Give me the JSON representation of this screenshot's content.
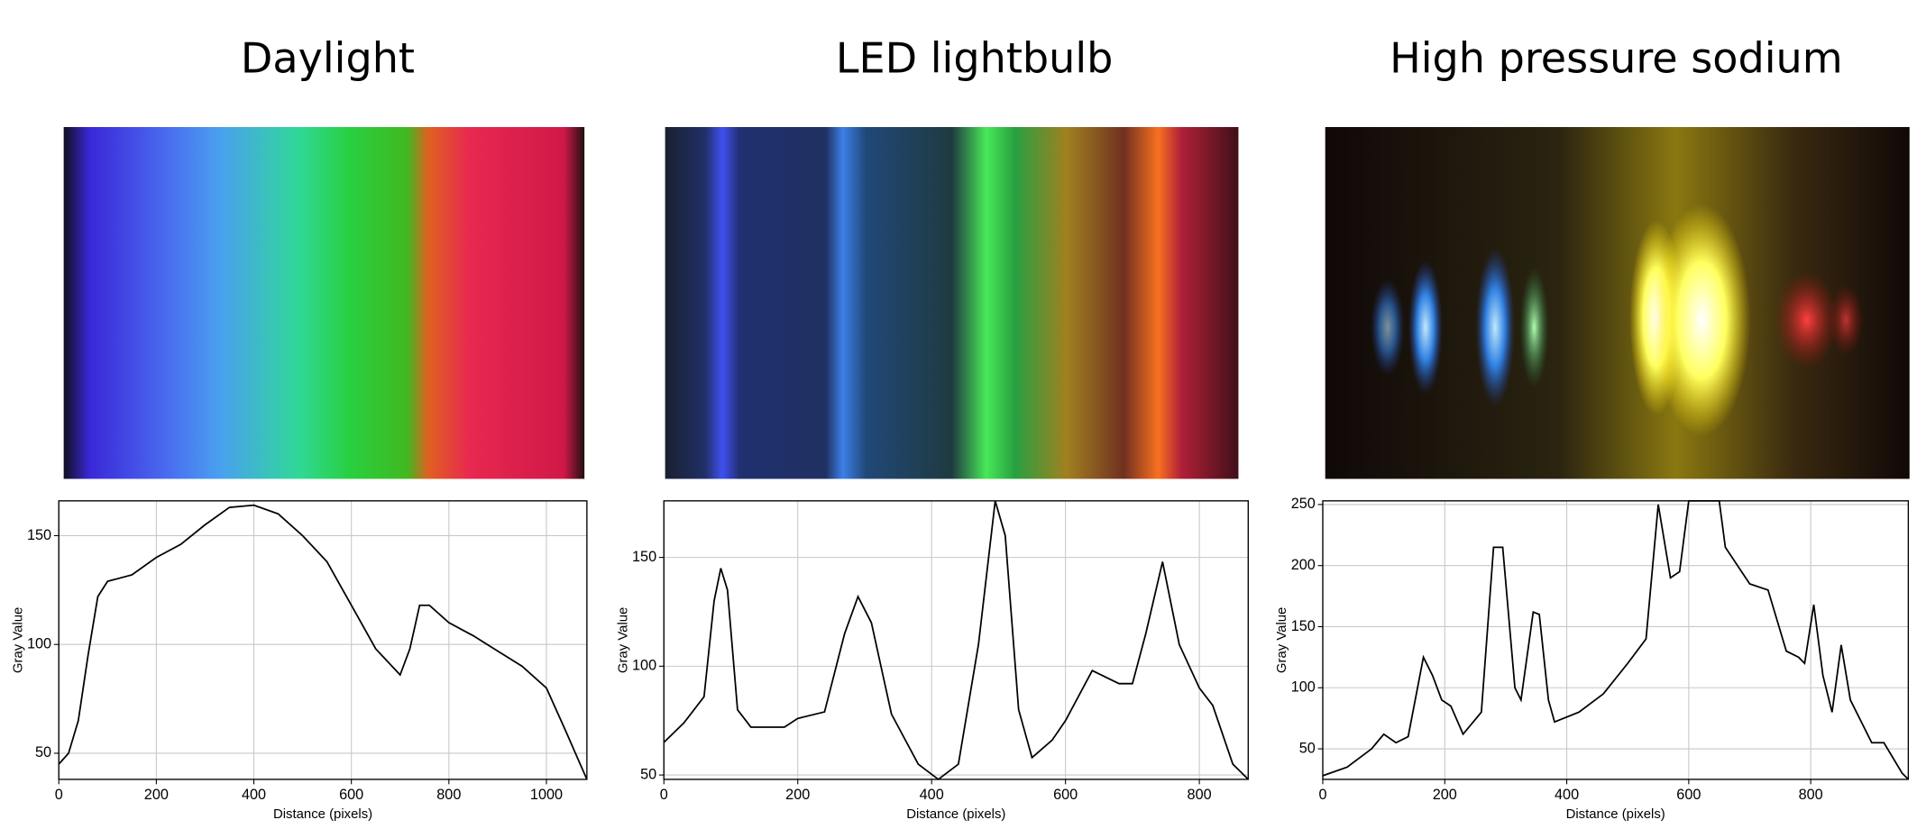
{
  "chart_data": [
    {
      "type": "line",
      "title": "Daylight",
      "xlabel": "Distance (pixels)",
      "ylabel": "Gray Value",
      "x": [
        0,
        20,
        40,
        60,
        80,
        100,
        150,
        200,
        250,
        300,
        350,
        400,
        450,
        500,
        550,
        600,
        650,
        700,
        720,
        740,
        760,
        800,
        850,
        900,
        950,
        1000,
        1040,
        1083
      ],
      "y": [
        45,
        50,
        65,
        95,
        122,
        129,
        132,
        140,
        146,
        155,
        163,
        164,
        160,
        150,
        138,
        118,
        98,
        86,
        98,
        118,
        118,
        110,
        104,
        97,
        90,
        80,
        60,
        38
      ],
      "color": "#000000",
      "xlim": [
        0,
        1083
      ],
      "ylim": [
        38,
        166
      ],
      "xticks": [
        0,
        200,
        400,
        600,
        800,
        1000
      ],
      "yticks": [
        50,
        100,
        150
      ],
      "grid": true
    },
    {
      "type": "line",
      "title": "LED lightbulb",
      "xlabel": "Distance (pixels)",
      "ylabel": "Gray Value",
      "x": [
        0,
        30,
        60,
        75,
        85,
        95,
        110,
        130,
        180,
        200,
        240,
        270,
        290,
        310,
        340,
        380,
        410,
        440,
        470,
        495,
        510,
        530,
        550,
        580,
        600,
        640,
        680,
        700,
        720,
        745,
        770,
        800,
        820,
        850,
        873
      ],
      "y": [
        65,
        74,
        86,
        130,
        145,
        135,
        80,
        72,
        72,
        76,
        79,
        115,
        132,
        120,
        78,
        55,
        48,
        55,
        110,
        176,
        160,
        80,
        58,
        66,
        75,
        98,
        92,
        92,
        115,
        148,
        110,
        90,
        82,
        55,
        48
      ],
      "color": "#000000",
      "xlim": [
        0,
        873
      ],
      "ylim": [
        48,
        176
      ],
      "xticks": [
        0,
        200,
        400,
        600,
        800
      ],
      "yticks": [
        50,
        100,
        150
      ],
      "grid": true
    },
    {
      "type": "line",
      "title": "High pressure sodium",
      "xlabel": "Distance (pixels)",
      "ylabel": "Gray Value",
      "x": [
        0,
        40,
        80,
        100,
        120,
        140,
        165,
        180,
        195,
        210,
        230,
        260,
        280,
        295,
        315,
        325,
        345,
        355,
        370,
        380,
        420,
        460,
        500,
        530,
        550,
        570,
        585,
        600,
        650,
        660,
        700,
        730,
        760,
        780,
        790,
        805,
        820,
        835,
        850,
        865,
        880,
        900,
        920,
        950,
        960
      ],
      "y": [
        28,
        35,
        50,
        62,
        55,
        60,
        125,
        110,
        90,
        85,
        62,
        80,
        215,
        215,
        100,
        90,
        162,
        160,
        90,
        72,
        80,
        95,
        120,
        140,
        250,
        190,
        195,
        253,
        253,
        215,
        185,
        180,
        130,
        125,
        120,
        168,
        110,
        80,
        135,
        90,
        75,
        55,
        55,
        30,
        25
      ],
      "color": "#000000",
      "xlim": [
        0,
        960
      ],
      "ylim": [
        25,
        253
      ],
      "xticks": [
        0,
        200,
        400,
        600,
        800
      ],
      "yticks": [
        50,
        100,
        150,
        200,
        250
      ],
      "grid": true
    }
  ]
}
